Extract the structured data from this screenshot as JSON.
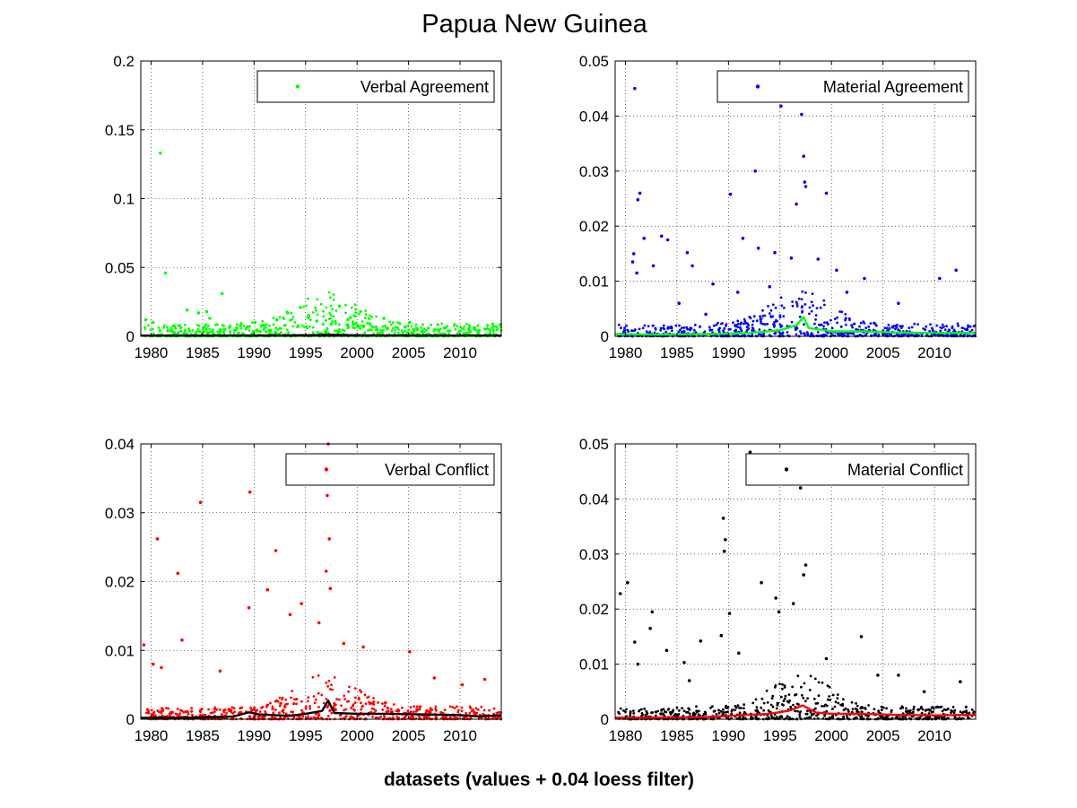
{
  "figure": {
    "title": "Papua New Guinea",
    "xlabel": "datasets (values + 0.04 loess filter)"
  },
  "chart_data": [
    {
      "type": "scatter",
      "panel": "top-left",
      "legend": "Verbal Agreement",
      "legend_position": "top-right",
      "grid": true,
      "xlim": [
        1979,
        2014
      ],
      "ylim": [
        0,
        0.2
      ],
      "xticks": [
        "1980",
        "1985",
        "1990",
        "1995",
        "2000",
        "2005",
        "2010"
      ],
      "yticks": [
        "0",
        "0.05",
        "0.1",
        "0.15",
        "0.2"
      ],
      "point_color": "#00ff00",
      "smooth_color": "#000000",
      "series": [
        {
          "name": "Verbal Agreement",
          "role": "points",
          "points": [
            [
              1980.9,
              0.133
            ],
            [
              1981.4,
              0.046
            ],
            [
              1986.9,
              0.031
            ],
            [
              1979.5,
              0.012
            ],
            [
              1980.2,
              0.01
            ],
            [
              1983.5,
              0.019
            ],
            [
              1984.6,
              0.017
            ],
            [
              1985.4,
              0.018
            ],
            [
              1985.7,
              0.013
            ],
            [
              1990.1,
              0.01
            ],
            [
              1990.8,
              0.008
            ],
            [
              1992.2,
              0.012
            ],
            [
              1994.5,
              0.021
            ],
            [
              1995.3,
              0.015
            ],
            [
              1996.1,
              0.011
            ],
            [
              1997.5,
              0.009
            ],
            [
              1998.3,
              0.022
            ],
            [
              1999.1,
              0.012
            ],
            [
              2002.6,
              0.013
            ],
            [
              2005.1,
              0.01
            ],
            [
              2008.5,
              0.006
            ],
            [
              2011.4,
              0.005
            ],
            [
              1989.4,
              0.007
            ],
            [
              1993.0,
              0.008
            ],
            [
              2000.6,
              0.007
            ]
          ]
        },
        {
          "name": "",
          "role": "loess",
          "points": [
            [
              1979,
              0.0005
            ],
            [
              1985,
              0.0005
            ],
            [
              1990,
              0.0006
            ],
            [
              1995,
              0.0008
            ],
            [
              1997.3,
              0.0011
            ],
            [
              2000,
              0.0007
            ],
            [
              2005,
              0.0006
            ],
            [
              2010,
              0.0005
            ],
            [
              2014,
              0.0005
            ]
          ]
        }
      ]
    },
    {
      "type": "scatter",
      "panel": "top-right",
      "legend": "Material Agreement",
      "legend_position": "top-right",
      "grid": true,
      "xlim": [
        1979,
        2014
      ],
      "ylim": [
        0,
        0.05
      ],
      "xticks": [
        "1980",
        "1985",
        "1990",
        "1995",
        "2000",
        "2005",
        "2010"
      ],
      "yticks": [
        "0",
        "0.01",
        "0.02",
        "0.03",
        "0.04",
        "0.05"
      ],
      "point_color": "#0000ff",
      "smooth_color": "#00ff00",
      "series": [
        {
          "name": "Material Agreement",
          "role": "points",
          "points": [
            [
              1980.9,
              0.045
            ],
            [
              1981.4,
              0.026
            ],
            [
              1981.2,
              0.0248
            ],
            [
              1981.8,
              0.0178
            ],
            [
              1980.8,
              0.015
            ],
            [
              1980.7,
              0.0135
            ],
            [
              1981.1,
              0.0115
            ],
            [
              1982.7,
              0.0128
            ],
            [
              1983.5,
              0.0182
            ],
            [
              1984.1,
              0.0175
            ],
            [
              1986.0,
              0.0152
            ],
            [
              1986.5,
              0.0128
            ],
            [
              1988.5,
              0.0095
            ],
            [
              1990.2,
              0.0258
            ],
            [
              1991.4,
              0.0178
            ],
            [
              1992.6,
              0.03
            ],
            [
              1992.9,
              0.016
            ],
            [
              1994.5,
              0.0152
            ],
            [
              1995.1,
              0.0418
            ],
            [
              1996.6,
              0.024
            ],
            [
              1997.1,
              0.0403
            ],
            [
              1997.3,
              0.0327
            ],
            [
              1997.4,
              0.028
            ],
            [
              1997.5,
              0.0272
            ],
            [
              1999.5,
              0.026
            ],
            [
              1996.1,
              0.0142
            ],
            [
              1998.7,
              0.014
            ],
            [
              2000.5,
              0.012
            ],
            [
              2003.2,
              0.0105
            ],
            [
              2010.5,
              0.0105
            ],
            [
              2012.1,
              0.012
            ],
            [
              1990.9,
              0.008
            ],
            [
              1994.0,
              0.009
            ],
            [
              2001.5,
              0.008
            ],
            [
              2006.5,
              0.006
            ],
            [
              1985.2,
              0.006
            ],
            [
              1987.8,
              0.004
            ]
          ]
        },
        {
          "name": "",
          "role": "loess",
          "points": [
            [
              1979,
              0.0004
            ],
            [
              1983,
              0.0003
            ],
            [
              1988,
              0.0004
            ],
            [
              1992,
              0.0006
            ],
            [
              1995,
              0.0011
            ],
            [
              1996.6,
              0.002
            ],
            [
              1997.3,
              0.0035
            ],
            [
              1997.8,
              0.0015
            ],
            [
              2000,
              0.0009
            ],
            [
              2003,
              0.0009
            ],
            [
              2006,
              0.0007
            ],
            [
              2010,
              0.0006
            ],
            [
              2014,
              0.0006
            ]
          ]
        }
      ]
    },
    {
      "type": "scatter",
      "panel": "bottom-left",
      "legend": "Verbal Conflict",
      "legend_position": "top-right",
      "grid": true,
      "xlim": [
        1979,
        2014
      ],
      "ylim": [
        0,
        0.04
      ],
      "xticks": [
        "1980",
        "1985",
        "1990",
        "1995",
        "2000",
        "2005",
        "2010"
      ],
      "yticks": [
        "0",
        "0.01",
        "0.02",
        "0.03",
        "0.04"
      ],
      "point_color": "#ff0000",
      "smooth_color": "#000000",
      "series": [
        {
          "name": "Verbal Conflict",
          "role": "points",
          "points": [
            [
              1979.3,
              0.0108
            ],
            [
              1980.6,
              0.0262
            ],
            [
              1982.6,
              0.0212
            ],
            [
              1983.0,
              0.0115
            ],
            [
              1984.8,
              0.0315
            ],
            [
              1989.6,
              0.033
            ],
            [
              1991.3,
              0.0188
            ],
            [
              1992.1,
              0.0245
            ],
            [
              1997.2,
              0.04
            ],
            [
              1997.1,
              0.0325
            ],
            [
              1997.3,
              0.0262
            ],
            [
              1997.0,
              0.0215
            ],
            [
              1997.4,
              0.019
            ],
            [
              1989.5,
              0.0162
            ],
            [
              1993.5,
              0.0152
            ],
            [
              1994.6,
              0.0168
            ],
            [
              1996.3,
              0.014
            ],
            [
              1998.7,
              0.011
            ],
            [
              2000.6,
              0.0105
            ],
            [
              2005.1,
              0.0098
            ],
            [
              2012.4,
              0.0058
            ],
            [
              1980.2,
              0.008
            ],
            [
              1981.0,
              0.0075
            ],
            [
              1986.7,
              0.007
            ],
            [
              2007.5,
              0.006
            ],
            [
              2010.2,
              0.005
            ]
          ]
        },
        {
          "name": "",
          "role": "loess",
          "points": [
            [
              1979,
              0.0002
            ],
            [
              1983,
              0.0002
            ],
            [
              1986,
              0.0003
            ],
            [
              1988,
              0.0004
            ],
            [
              1989.5,
              0.001
            ],
            [
              1990.5,
              0.0007
            ],
            [
              1992,
              0.0006
            ],
            [
              1993.5,
              0.0005
            ],
            [
              1995,
              0.0008
            ],
            [
              1996.6,
              0.0012
            ],
            [
              1997.2,
              0.0027
            ],
            [
              1997.8,
              0.0009
            ],
            [
              2000,
              0.0008
            ],
            [
              2003,
              0.0008
            ],
            [
              2006,
              0.0007
            ],
            [
              2010,
              0.0006
            ],
            [
              2012,
              0.0004
            ],
            [
              2014,
              0.0006
            ]
          ]
        }
      ]
    },
    {
      "type": "scatter",
      "panel": "bottom-right",
      "legend": "Material Conflict",
      "legend_position": "top-right",
      "grid": true,
      "xlim": [
        1979,
        2014
      ],
      "ylim": [
        0,
        0.05
      ],
      "xticks": [
        "1980",
        "1985",
        "1990",
        "1995",
        "2000",
        "2005",
        "2010"
      ],
      "yticks": [
        "0",
        "0.01",
        "0.02",
        "0.03",
        "0.04",
        "0.05"
      ],
      "point_color": "#000000",
      "smooth_color": "#ff0000",
      "series": [
        {
          "name": "Material Conflict",
          "role": "points",
          "points": [
            [
              1979.5,
              0.0228
            ],
            [
              1980.2,
              0.0248
            ],
            [
              1980.9,
              0.014
            ],
            [
              1981.2,
              0.01
            ],
            [
              1982.6,
              0.0195
            ],
            [
              1982.4,
              0.0165
            ],
            [
              1984.0,
              0.0125
            ],
            [
              1985.7,
              0.0103
            ],
            [
              1987.3,
              0.0142
            ],
            [
              1989.5,
              0.0365
            ],
            [
              1989.7,
              0.0326
            ],
            [
              1989.6,
              0.0305
            ],
            [
              1990.1,
              0.0192
            ],
            [
              1989.3,
              0.0152
            ],
            [
              1992.1,
              0.0485
            ],
            [
              1993.2,
              0.0248
            ],
            [
              1994.6,
              0.022
            ],
            [
              1994.9,
              0.0195
            ],
            [
              1996.3,
              0.021
            ],
            [
              1997.0,
              0.042
            ],
            [
              1997.5,
              0.028
            ],
            [
              1997.3,
              0.0262
            ],
            [
              2002.9,
              0.015
            ],
            [
              2006.5,
              0.008
            ],
            [
              2012.5,
              0.0068
            ],
            [
              1986.2,
              0.007
            ],
            [
              1991.0,
              0.012
            ],
            [
              1999.5,
              0.011
            ],
            [
              2004.5,
              0.008
            ],
            [
              2009.0,
              0.005
            ]
          ]
        },
        {
          "name": "",
          "role": "loess",
          "points": [
            [
              1979,
              0.0003
            ],
            [
              1984,
              0.0003
            ],
            [
              1988,
              0.0004
            ],
            [
              1990,
              0.0006
            ],
            [
              1992,
              0.0008
            ],
            [
              1994,
              0.001
            ],
            [
              1996,
              0.0016
            ],
            [
              1997.2,
              0.0025
            ],
            [
              1998.5,
              0.0012
            ],
            [
              2000,
              0.001
            ],
            [
              2003,
              0.001
            ],
            [
              2006,
              0.0008
            ],
            [
              2010,
              0.0007
            ],
            [
              2014,
              0.0008
            ]
          ]
        }
      ]
    }
  ]
}
